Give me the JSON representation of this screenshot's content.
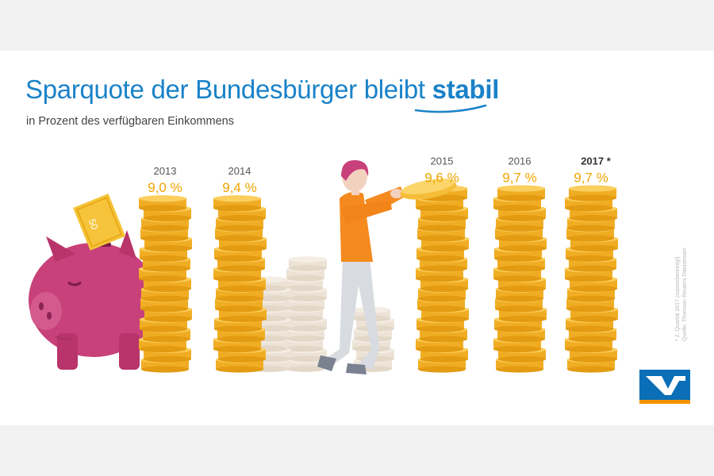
{
  "title": {
    "main": "Sparquote der Bundesbürger bleibt",
    "emphasis": "stabil"
  },
  "subtitle": "in Prozent des verfügbaren Einkommens",
  "footnotes": {
    "line1": "* 2. Quartal 2017 (saisonbereinigt)",
    "line2": "Quelle: Thomson Reuters Datastream"
  },
  "banknote_text": "50",
  "colors": {
    "title_blue": "#1a82c8",
    "value_orange": "#f0a400",
    "coin_gold": "#f5bd3a",
    "piggy_pink": "#c8417a",
    "shirt_orange": "#f58a1f",
    "logo_blue": "#0a6fb7",
    "logo_orange": "#f39200"
  },
  "chart_data": {
    "type": "bar",
    "title": "Sparquote der Bundesbürger bleibt stabil",
    "subtitle": "in Prozent des verfügbaren Einkommens",
    "unit": "%",
    "categories": [
      "2013",
      "2014",
      "2015",
      "2016",
      "2017 *"
    ],
    "values": [
      9.0,
      9.4,
      9.6,
      9.7,
      9.7
    ],
    "value_labels": [
      "9,0 %",
      "9,4 %",
      "9,6 %",
      "9,7 %",
      "9,7 %"
    ],
    "xlabel": "",
    "ylabel": "",
    "ylim": [
      0,
      10
    ]
  }
}
